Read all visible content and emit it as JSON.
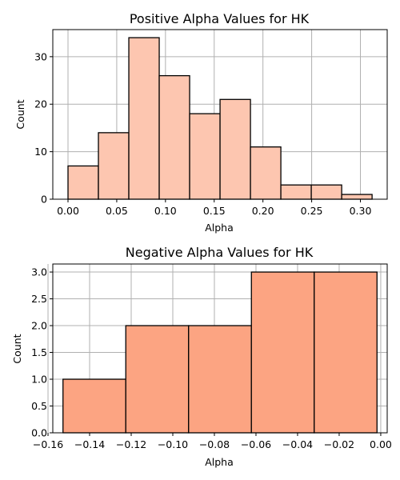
{
  "chart_data": [
    {
      "type": "bar",
      "title": "Positive Alpha Values for HK",
      "xlabel": "Alpha",
      "ylabel": "Count",
      "xlim": [
        -0.0156,
        0.3275
      ],
      "ylim": [
        0,
        35.7
      ],
      "xticks": [
        "0.00",
        "0.05",
        "0.10",
        "0.15",
        "0.20",
        "0.25",
        "0.30"
      ],
      "yticks": [
        "0",
        "10",
        "20",
        "30"
      ],
      "grid": true,
      "bar_color": "#fdc6b0",
      "edge_color": "#000000",
      "bins": [
        {
          "x0": 0.0,
          "x1": 0.0312,
          "count": 7
        },
        {
          "x0": 0.0312,
          "x1": 0.0624,
          "count": 14
        },
        {
          "x0": 0.0624,
          "x1": 0.0936,
          "count": 34
        },
        {
          "x0": 0.0936,
          "x1": 0.1248,
          "count": 26
        },
        {
          "x0": 0.1248,
          "x1": 0.156,
          "count": 18
        },
        {
          "x0": 0.156,
          "x1": 0.1872,
          "count": 21
        },
        {
          "x0": 0.1872,
          "x1": 0.2184,
          "count": 11
        },
        {
          "x0": 0.2184,
          "x1": 0.2496,
          "count": 3
        },
        {
          "x0": 0.2496,
          "x1": 0.2808,
          "count": 3
        },
        {
          "x0": 0.2808,
          "x1": 0.312,
          "count": 1
        }
      ]
    },
    {
      "type": "bar",
      "title": "Negative Alpha Values for HK",
      "xlabel": "Alpha",
      "ylabel": "Count",
      "xlim": [
        -0.1577,
        0.0031
      ],
      "ylim": [
        0,
        3.15
      ],
      "xticks": [
        "−0.16",
        "−0.14",
        "−0.12",
        "−0.10",
        "−0.08",
        "−0.06",
        "−0.04",
        "−0.02",
        "0.00"
      ],
      "yticks": [
        "0.0",
        "0.5",
        "1.0",
        "1.5",
        "2.0",
        "2.5",
        "3.0"
      ],
      "grid": true,
      "bar_color": "#fca482",
      "edge_color": "#000000",
      "bins": [
        {
          "x0": -0.1528,
          "x1": -0.1226,
          "count": 1
        },
        {
          "x0": -0.1226,
          "x1": -0.0924,
          "count": 2
        },
        {
          "x0": -0.0924,
          "x1": -0.0622,
          "count": 2
        },
        {
          "x0": -0.0622,
          "x1": -0.032,
          "count": 3
        },
        {
          "x0": -0.032,
          "x1": -0.0018,
          "count": 3
        }
      ]
    }
  ]
}
